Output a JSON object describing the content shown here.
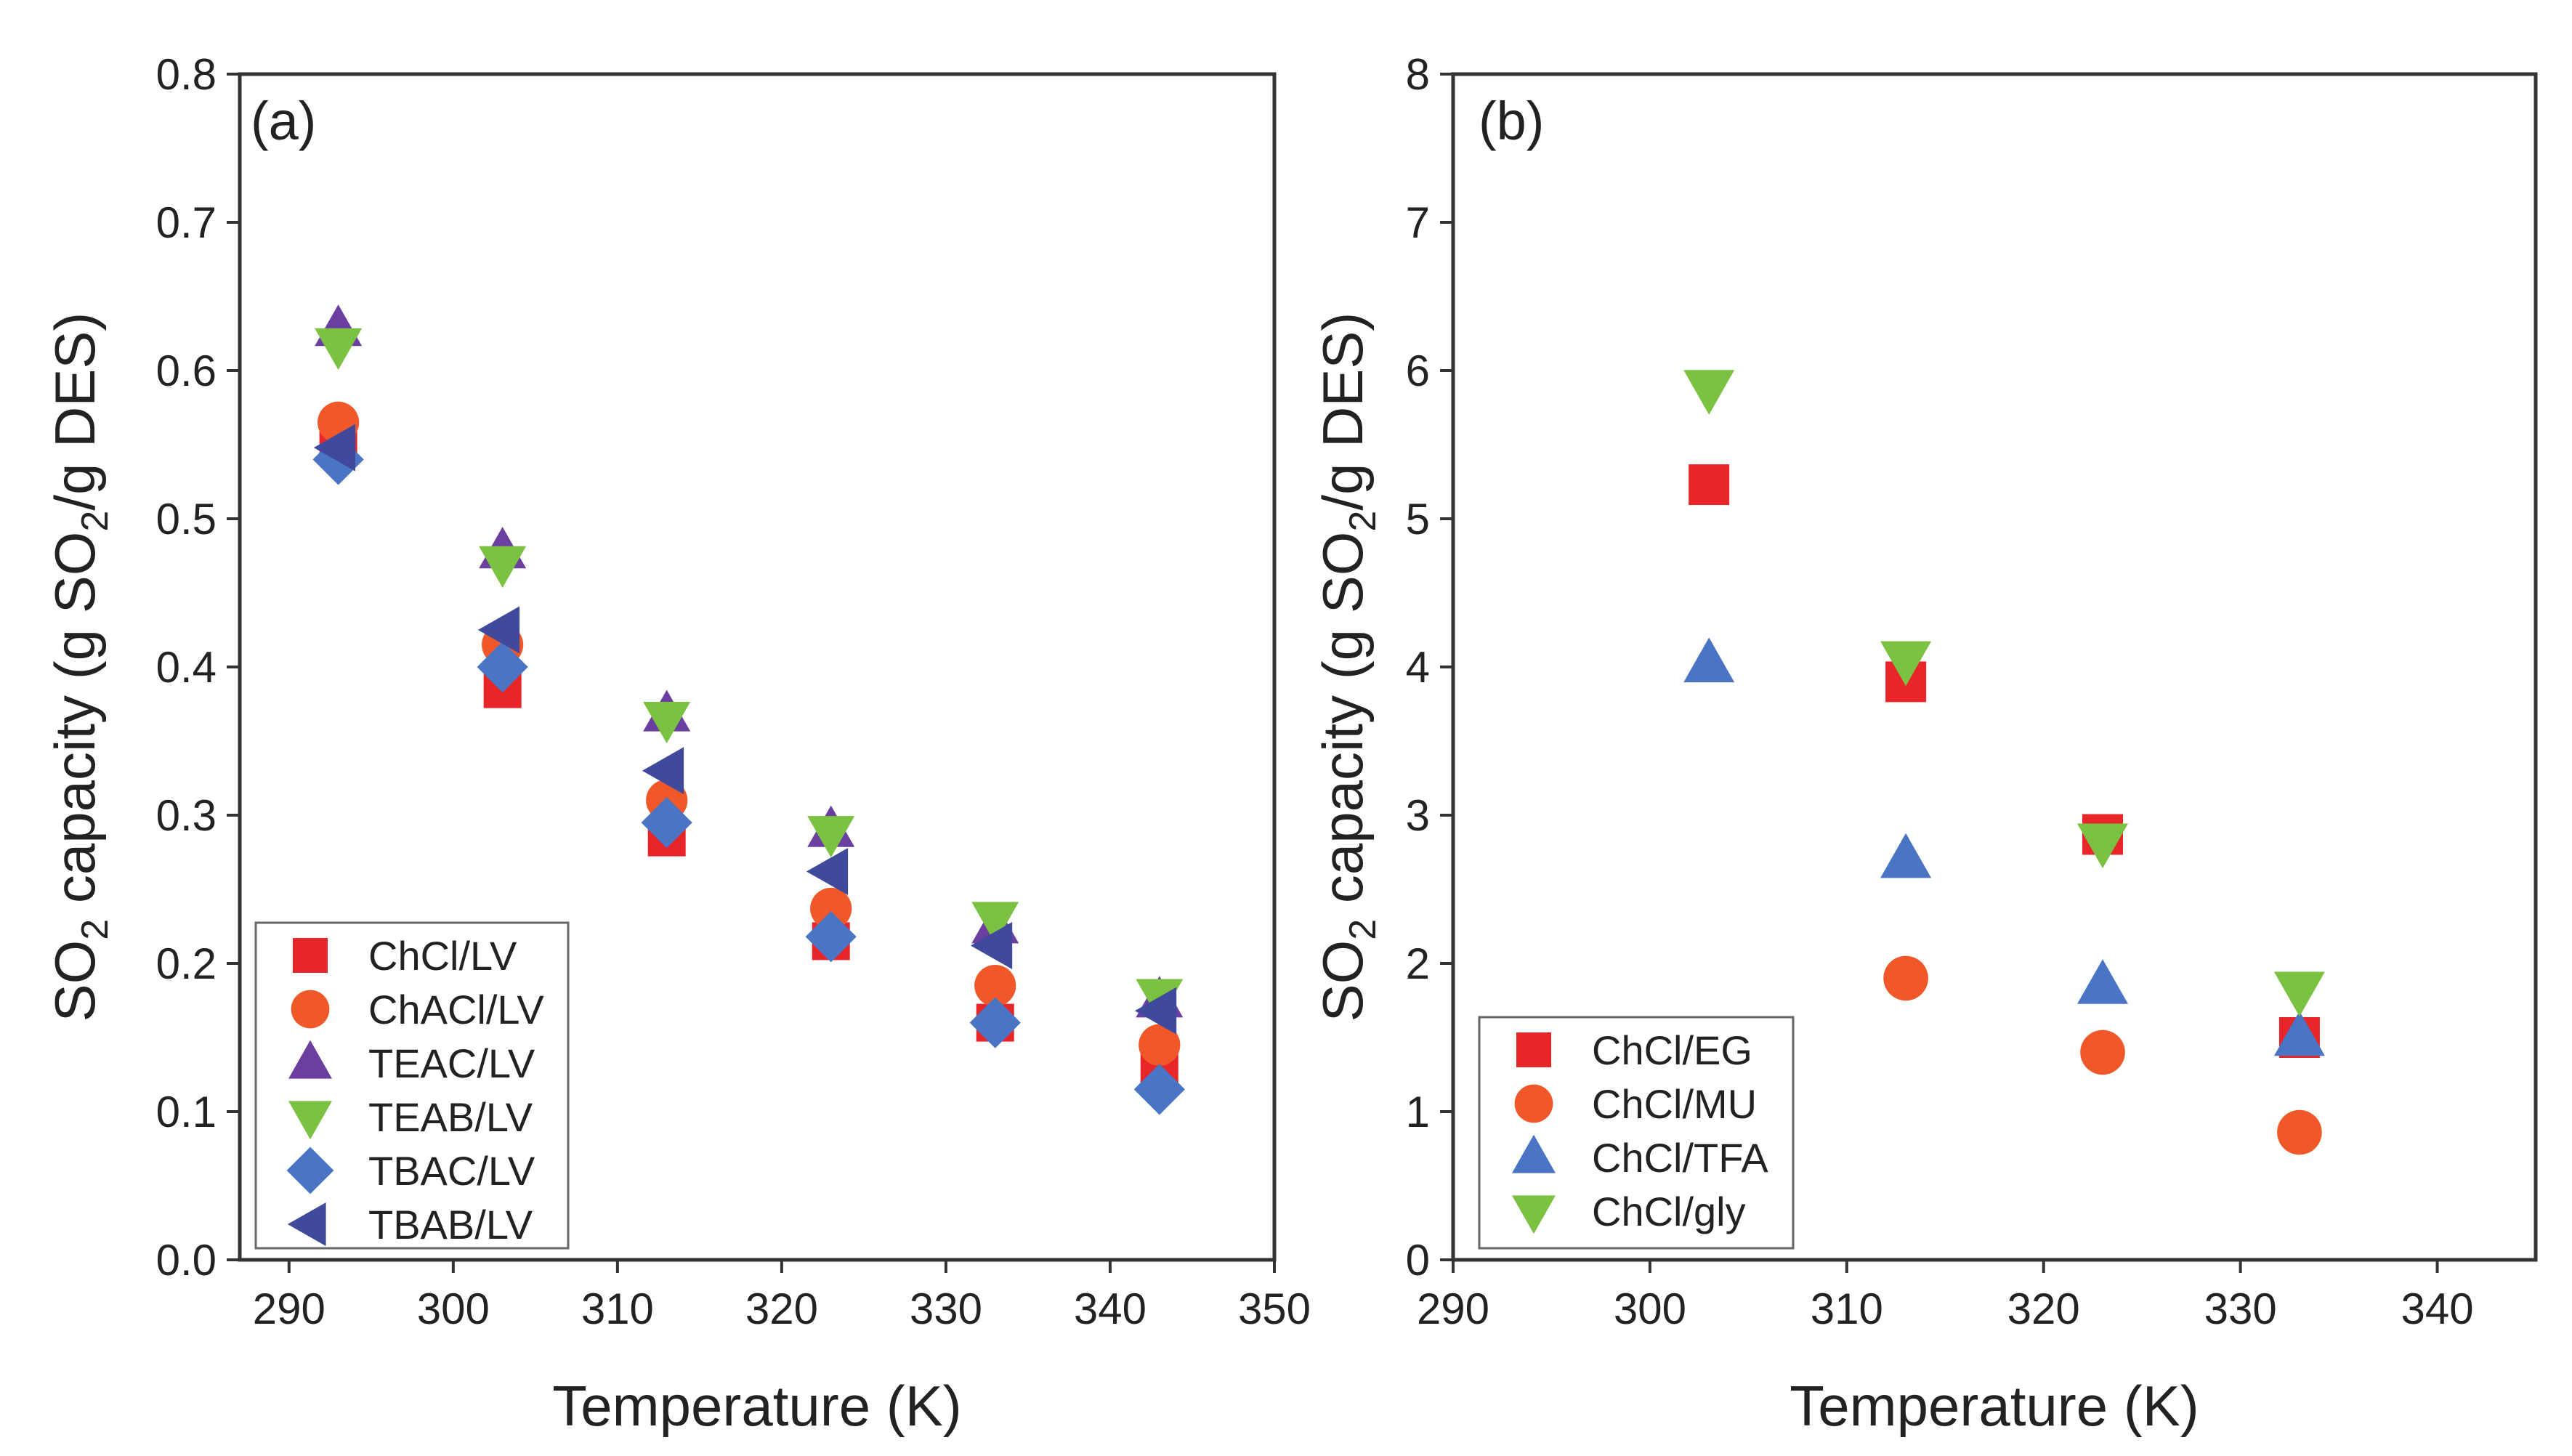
{
  "colors": {
    "red": "#e8262a",
    "orange": "#f0582a",
    "purple": "#6b3fa0",
    "green": "#7cc242",
    "blue": "#4a74c4",
    "navy": "#3f4a9c"
  },
  "chart_data": [
    {
      "type": "scatter",
      "panel_label": "(a)",
      "title": "",
      "xlabel": "Temperature (K)",
      "ylabel": [
        "SO",
        "2",
        " capacity (g SO",
        "2",
        "/g DES)"
      ],
      "xlim": [
        287,
        350
      ],
      "ylim": [
        0,
        0.8
      ],
      "xticks": [
        290,
        300,
        310,
        320,
        330,
        340,
        350
      ],
      "xtick_labels": [
        "290",
        "300",
        "310",
        "320",
        "330",
        "340",
        "350"
      ],
      "yticks": [
        0,
        0.1,
        0.2,
        0.3,
        0.4,
        0.5,
        0.6,
        0.7,
        0.8
      ],
      "ytick_labels": [
        "0.0",
        "0.1",
        "0.2",
        "0.3",
        "0.4",
        "0.5",
        "0.6",
        "0.7",
        "0.8"
      ],
      "legend_position": "bottom-left",
      "series": [
        {
          "name": "ChCl/LV",
          "marker": "square",
          "color": "red",
          "x": [
            293,
            303,
            313,
            323,
            333,
            343
          ],
          "y": [
            0.555,
            0.385,
            0.285,
            0.215,
            0.16,
            0.128
          ]
        },
        {
          "name": "ChACl/LV",
          "marker": "circle",
          "color": "orange",
          "x": [
            293,
            303,
            313,
            323,
            333,
            343
          ],
          "y": [
            0.565,
            0.415,
            0.31,
            0.237,
            0.185,
            0.145
          ]
        },
        {
          "name": "TEAC/LV",
          "marker": "triangle-up",
          "color": "purple",
          "x": [
            293,
            303,
            313,
            323,
            333,
            343
          ],
          "y": [
            0.628,
            0.478,
            0.368,
            0.29,
            0.225,
            0.175
          ]
        },
        {
          "name": "TEAB/LV",
          "marker": "triangle-down",
          "color": "green",
          "x": [
            293,
            303,
            313,
            323,
            333,
            343
          ],
          "y": [
            0.617,
            0.47,
            0.365,
            0.288,
            0.23,
            0.178
          ]
        },
        {
          "name": "TBAC/LV",
          "marker": "diamond",
          "color": "blue",
          "x": [
            293,
            303,
            313,
            323,
            333,
            343
          ],
          "y": [
            0.54,
            0.4,
            0.295,
            0.218,
            0.16,
            0.115
          ]
        },
        {
          "name": "TBAB/LV",
          "marker": "triangle-left",
          "color": "navy",
          "x": [
            293,
            303,
            313,
            323,
            333,
            343
          ],
          "y": [
            0.548,
            0.425,
            0.33,
            0.262,
            0.212,
            0.168
          ]
        }
      ]
    },
    {
      "type": "scatter",
      "panel_label": "(b)",
      "title": "",
      "xlabel": "Temperature (K)",
      "ylabel": [
        "SO",
        "2",
        " capacity (g SO",
        "2",
        "/g DES)"
      ],
      "xlim": [
        290,
        345
      ],
      "ylim": [
        0,
        8
      ],
      "xticks": [
        290,
        300,
        310,
        320,
        330,
        340
      ],
      "xtick_labels": [
        "290",
        "300",
        "310",
        "320",
        "330",
        "340"
      ],
      "yticks": [
        0,
        1,
        2,
        3,
        4,
        5,
        6,
        7,
        8
      ],
      "ytick_labels": [
        "0",
        "1",
        "2",
        "3",
        "4",
        "5",
        "6",
        "7",
        "8"
      ],
      "legend_position": "bottom-left",
      "series": [
        {
          "name": "ChCl/EG",
          "marker": "square",
          "color": "red",
          "x": [
            303,
            313,
            323,
            333
          ],
          "y": [
            5.23,
            3.9,
            2.87,
            1.5
          ]
        },
        {
          "name": "ChCl/MU",
          "marker": "circle",
          "color": "orange",
          "x": [
            313,
            323,
            333
          ],
          "y": [
            1.9,
            1.4,
            0.86
          ]
        },
        {
          "name": "ChCl/TFA",
          "marker": "triangle-up",
          "color": "blue",
          "x": [
            303,
            313,
            323,
            333
          ],
          "y": [
            4.02,
            2.7,
            1.85,
            1.5
          ]
        },
        {
          "name": "ChCl/gly",
          "marker": "triangle-down",
          "color": "green",
          "x": [
            303,
            313,
            323,
            333
          ],
          "y": [
            5.88,
            4.05,
            2.82,
            1.82
          ]
        }
      ]
    }
  ]
}
